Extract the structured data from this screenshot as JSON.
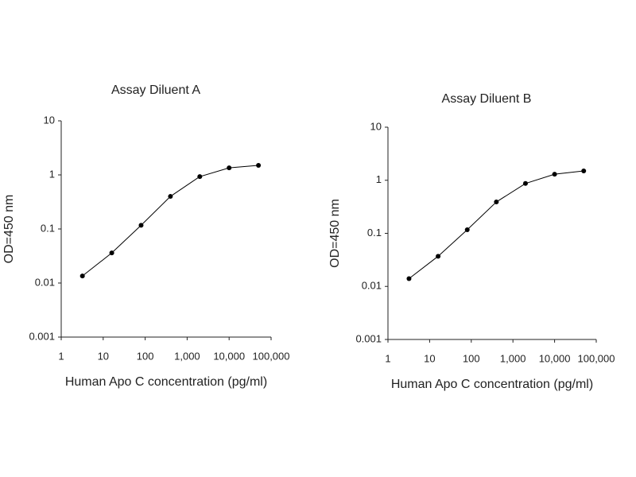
{
  "chart_data": [
    {
      "type": "line",
      "title": "Assay Diluent A",
      "x_label": "Human Apo C concentration (pg/ml)",
      "y_label": "OD=450 nm",
      "x": [
        3.2,
        16,
        80,
        400,
        2000,
        10000,
        50000
      ],
      "values": [
        0.0135,
        0.036,
        0.117,
        0.4,
        0.93,
        1.35,
        1.5
      ],
      "color": "#000000",
      "x_log": true,
      "y_log": true,
      "xlim": [
        1,
        100000
      ],
      "ylim": [
        0.001,
        10
      ],
      "xticks": [
        1,
        10,
        100,
        {
          "value": 1000,
          "label": "1,000"
        },
        {
          "value": 10000,
          "label": "10,000"
        },
        {
          "value": 100000,
          "label": "100,000"
        }
      ],
      "yticks": [
        0.001,
        0.01,
        0.1,
        1,
        10
      ]
    },
    {
      "type": "line",
      "title": "Assay Diluent B",
      "x_label": "Human Apo C concentration (pg/ml)",
      "y_label": "OD=450 nm",
      "x": [
        3.2,
        16,
        80,
        400,
        2000,
        10000,
        50000
      ],
      "values": [
        0.014,
        0.037,
        0.117,
        0.39,
        0.87,
        1.3,
        1.5
      ],
      "color": "#000000",
      "x_log": true,
      "y_log": true,
      "xlim": [
        1,
        100000
      ],
      "ylim": [
        0.001,
        10
      ],
      "xticks": [
        1,
        10,
        100,
        {
          "value": 1000,
          "label": "1,000"
        },
        {
          "value": 10000,
          "label": "10,000"
        },
        {
          "value": 100000,
          "label": "100,000"
        }
      ],
      "yticks": [
        0.001,
        0.01,
        0.1,
        1,
        10
      ]
    }
  ]
}
